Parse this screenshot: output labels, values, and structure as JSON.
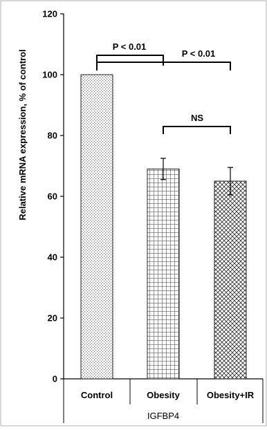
{
  "chart_data": {
    "type": "bar",
    "categories": [
      "Control",
      "Obesity",
      "Obesity+IR"
    ],
    "values": [
      100,
      69,
      65
    ],
    "error": [
      0,
      3.5,
      4.5
    ],
    "group_label": "IGFBP4",
    "ylabel": "Relative mRNA expression, % of control",
    "ylim": [
      0,
      120
    ],
    "yticks": [
      "0",
      "20",
      "40",
      "60",
      "80",
      "100",
      "120"
    ],
    "patterns": [
      "dots",
      "grid",
      "crosshatch"
    ],
    "grid": false,
    "annotations": [
      {
        "text": "P < 0.01",
        "from": "Control",
        "to": "Obesity"
      },
      {
        "text": "P < 0.01",
        "from": "Control",
        "to": "Obesity+IR"
      },
      {
        "text": "NS",
        "from": "Obesity",
        "to": "Obesity+IR"
      }
    ]
  },
  "colors": {
    "axis": "#000000",
    "bar_fill": "#ffffff",
    "pattern": "#555555",
    "frame": "#b0b0b0"
  }
}
